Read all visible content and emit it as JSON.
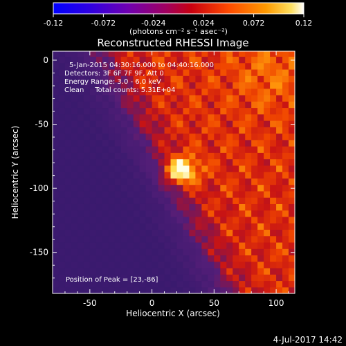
{
  "chart_data": {
    "type": "heatmap",
    "title": "Reconstructed RHESSI Image",
    "xlabel": "Heliocentric X (arcsec)",
    "ylabel": "Heliocentric Y (arcsec)",
    "xlim": [
      -80,
      115
    ],
    "ylim": [
      -182,
      7
    ],
    "xticks": [
      -50,
      0,
      50,
      100
    ],
    "yticks": [
      0,
      -50,
      -100,
      -150
    ],
    "annotation_lines": [
      "5-Jan-2015 04:30:16.000 to 04:40:16.000",
      "Detectors: 3F 6F 7F 9F, Att 0",
      "Energy Range: 3.0 - 6.0 keV",
      "Clean     Total counts: 5.31E+04"
    ],
    "peak_label": "Position of Peak = [23,-86]",
    "peak_position": [
      23,
      -86
    ],
    "footer_timestamp": "4-Jul-2017 14:42",
    "colorbar": {
      "min": -0.12,
      "max": 0.12,
      "tick_labels": [
        "-0.12",
        "-0.072",
        "-0.024",
        "0.024",
        "0.072",
        "0.12"
      ],
      "units_label": "(photons cm⁻² s⁻¹ asec⁻²)",
      "palette": [
        "#0000ff",
        "#5000d0",
        "#9000a0",
        "#c00020",
        "#ff4000",
        "#ff9000",
        "#ffd000",
        "#ffffff"
      ]
    }
  }
}
